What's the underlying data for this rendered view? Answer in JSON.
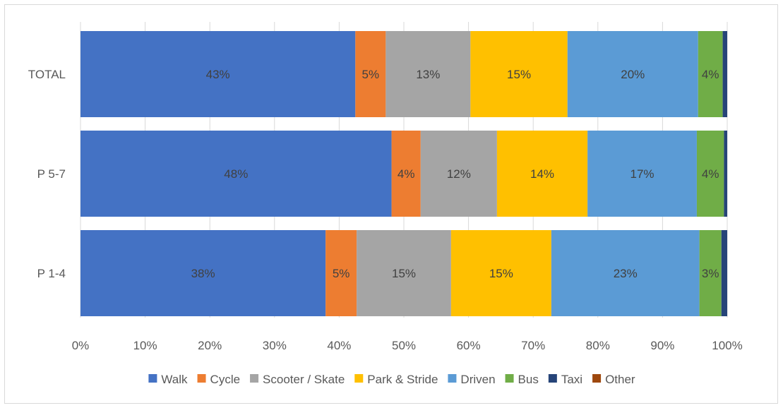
{
  "chart_data": {
    "type": "bar",
    "orientation": "horizontal",
    "stacked": "percent",
    "title": "",
    "xlabel": "",
    "ylabel": "",
    "categories": [
      "TOTAL",
      "P 5-7",
      "P 1-4"
    ],
    "xlim": [
      0,
      100
    ],
    "x_ticks": [
      "0%",
      "10%",
      "20%",
      "30%",
      "40%",
      "50%",
      "60%",
      "70%",
      "80%",
      "90%",
      "100%"
    ],
    "grid": true,
    "legend_position": "bottom",
    "series": [
      {
        "name": "Walk",
        "color": "#4472C4",
        "values": [
          42.5,
          48.1,
          37.9
        ],
        "labels": [
          "43%",
          "48%",
          "38%"
        ]
      },
      {
        "name": "Cycle",
        "color": "#ED7D31",
        "values": [
          4.7,
          4.5,
          4.8
        ],
        "labels": [
          "5%",
          "4%",
          "5%"
        ]
      },
      {
        "name": "Scooter / Skate",
        "color": "#A5A5A5",
        "values": [
          13.1,
          11.8,
          14.6
        ],
        "labels": [
          "13%",
          "12%",
          "15%"
        ]
      },
      {
        "name": "Park & Stride",
        "color": "#FFC000",
        "values": [
          15.0,
          14.0,
          15.5
        ],
        "labels": [
          "15%",
          "14%",
          "15%"
        ]
      },
      {
        "name": "Driven",
        "color": "#5B9BD5",
        "values": [
          20.2,
          16.9,
          22.9
        ],
        "labels": [
          "20%",
          "17%",
          "23%"
        ]
      },
      {
        "name": "Bus",
        "color": "#70AD47",
        "values": [
          3.8,
          4.2,
          3.4
        ],
        "labels": [
          "4%",
          "4%",
          "3%"
        ]
      },
      {
        "name": "Taxi",
        "color": "#264478",
        "values": [
          0.7,
          0.5,
          0.9
        ],
        "labels": [
          "",
          "",
          ""
        ]
      },
      {
        "name": "Other",
        "color": "#9E480E",
        "values": [
          0.0,
          0.0,
          0.0
        ],
        "labels": [
          "",
          "",
          ""
        ]
      }
    ]
  }
}
